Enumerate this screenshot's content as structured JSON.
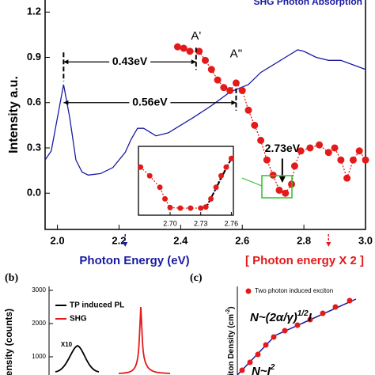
{
  "chart_data": [
    {
      "type": "line",
      "title": "SHG Photon Absorption",
      "ylabel": "Intensity a.u.",
      "xlabel": "Photon Energy (eV)",
      "x2label": "[ Photon energy X 2 ]",
      "xlim": [
        1.96,
        3.0
      ],
      "ylim": [
        -0.24,
        1.28
      ],
      "xticks": [
        {
          "value": 2,
          "label": "2.0"
        },
        2.2,
        2.4,
        2.6,
        2.8,
        {
          "value": 3,
          "label": "3.0"
        }
      ],
      "yticks": [
        {
          "value": 0,
          "label": "0.0"
        },
        0.3,
        0.6,
        0.9,
        1.2
      ],
      "series": [
        {
          "color": "#1a1aa0",
          "style": "line",
          "x": [
            1.96,
            1.98,
            2.0,
            2.02,
            2.04,
            2.06,
            2.08,
            2.1,
            2.14,
            2.18,
            2.22,
            2.24,
            2.26,
            2.28,
            2.32,
            2.36,
            2.4,
            2.44,
            2.5,
            2.56,
            2.62,
            2.66,
            2.7,
            2.74,
            2.78,
            2.8,
            2.84,
            2.88,
            2.92,
            2.96,
            3.0
          ],
          "values": [
            0.22,
            0.28,
            0.5,
            0.72,
            0.5,
            0.22,
            0.14,
            0.12,
            0.13,
            0.17,
            0.27,
            0.36,
            0.43,
            0.43,
            0.38,
            0.4,
            0.45,
            0.5,
            0.58,
            0.67,
            0.72,
            0.8,
            0.85,
            0.9,
            0.95,
            0.94,
            0.9,
            0.88,
            0.88,
            0.85,
            0.82
          ]
        },
        {
          "color": "#e31a1a",
          "style": "dots",
          "x": [
            2.39,
            2.41,
            2.43,
            2.46,
            2.48,
            2.5,
            2.52,
            2.54,
            2.56,
            2.58,
            2.6,
            2.62,
            2.64,
            2.66,
            2.68,
            2.7,
            2.72,
            2.74,
            2.76,
            2.77,
            2.79,
            2.82,
            2.85,
            2.88,
            2.9,
            2.92,
            2.94,
            2.96,
            2.98,
            3.0
          ],
          "values": [
            0.97,
            0.96,
            0.94,
            0.94,
            0.88,
            0.82,
            0.75,
            0.7,
            0.68,
            0.73,
            0.68,
            0.55,
            0.45,
            0.35,
            0.22,
            0.12,
            0.02,
            0.0,
            0.06,
            0.18,
            0.28,
            0.3,
            0.32,
            0.27,
            0.3,
            0.22,
            0.1,
            0.22,
            0.28,
            0.22
          ]
        }
      ],
      "intervals": [
        {
          "label": "0.43eV",
          "from": 2.02,
          "to": 2.45,
          "y": 0.87
        },
        {
          "label": "0.56eV",
          "from": 2.02,
          "to": 2.58,
          "y": 0.6
        }
      ],
      "peaks": [
        {
          "label": "A'",
          "x": 2.45,
          "y": 1.04
        },
        {
          "label": "A''",
          "x": 2.58,
          "y": 0.92
        }
      ],
      "arrow": {
        "label": "2.73eV",
        "x": 2.73,
        "y": 0.24
      },
      "markers_x": [
        {
          "x": 2.22,
          "color": "#1a1aa0"
        },
        {
          "x": 2.88,
          "color": "#e31a1a"
        }
      ]
    },
    {
      "type": "line",
      "xlim": [
        2.669,
        2.762
      ],
      "ylim": [
        0,
        1
      ],
      "xticks": [
        {
          "value": 2.7,
          "label": "2.70"
        },
        2.73,
        2.76
      ],
      "x": [
        2.671,
        2.68,
        2.69,
        2.695,
        2.7,
        2.71,
        2.72,
        2.73,
        2.735,
        2.74,
        2.745,
        2.75,
        2.755,
        2.76
      ],
      "values": [
        0.75,
        0.6,
        0.4,
        0.2,
        0.05,
        0.04,
        0.04,
        0.04,
        0.06,
        0.2,
        0.4,
        0.6,
        0.75,
        0.9
      ]
    },
    {
      "type": "line",
      "panel_label": "(b)",
      "ylabel": "Intensity (counts)",
      "yticks": [
        1000,
        2000,
        3000
      ],
      "series": [
        {
          "name": "TP induced PL",
          "color": "#000"
        },
        {
          "name": "SHG",
          "color": "#e31a1a"
        }
      ],
      "annotation": "X10"
    },
    {
      "type": "scatter",
      "panel_label": "(c)",
      "ylabel": [
        "Exciton Density (cm",
        "-2",
        ")"
      ],
      "series": [
        {
          "name": "Two photon induced exciton",
          "color": "#e31a1a"
        }
      ],
      "formulas": [
        [
          "N~(2α/γ)",
          "1/2",
          "I"
        ],
        [
          "N~I",
          "2"
        ]
      ]
    }
  ]
}
